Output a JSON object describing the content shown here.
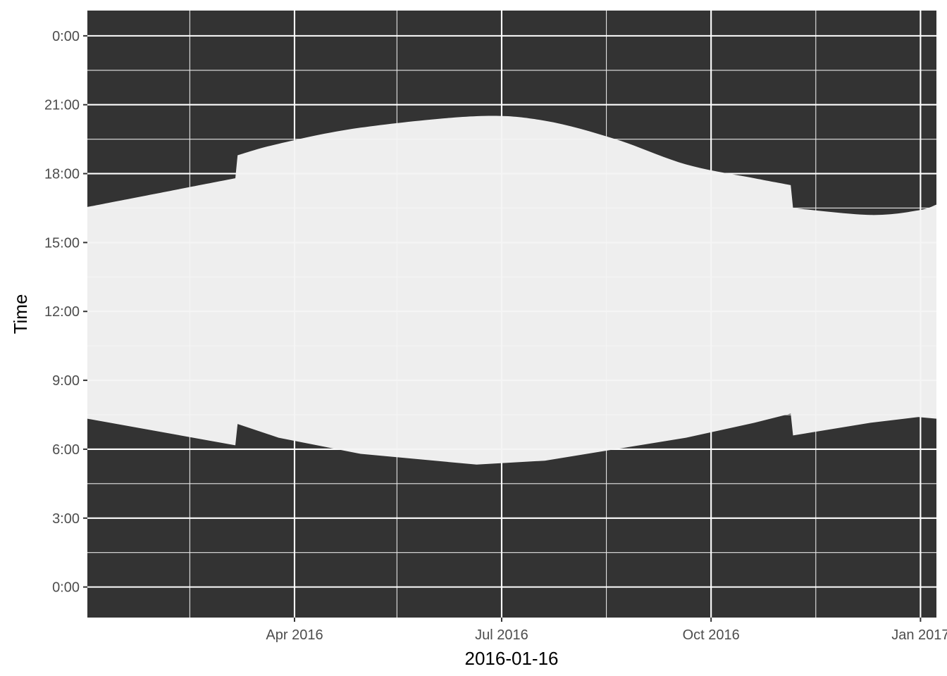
{
  "chart_data": {
    "type": "area",
    "title": "",
    "xlabel": "2016-01-16",
    "ylabel": "Time",
    "xlim": [
      "2016-01-01",
      "2017-01-08"
    ],
    "ylim": [
      -1.33,
      25.1
    ],
    "grid": true,
    "colors": {
      "panel": "#333333",
      "ribbon": "#f5f5f5",
      "grid_major": "#ffffff",
      "grid_minor": "#e6e6e6",
      "tick_text": "#4d4d4d",
      "title_text": "#000000"
    },
    "x_ticks": [
      {
        "date": "2016-04-01",
        "label": "Apr 2016"
      },
      {
        "date": "2016-07-01",
        "label": "Jul 2016"
      },
      {
        "date": "2016-10-01",
        "label": "Oct 2016"
      },
      {
        "date": "2017-01-01",
        "label": "Jan 2017"
      }
    ],
    "x_minor_ticks": [
      "2016-02-15",
      "2016-05-16",
      "2016-08-16",
      "2016-11-16"
    ],
    "y_ticks": [
      {
        "value": 0,
        "label": "0:00"
      },
      {
        "value": 3,
        "label": "3:00"
      },
      {
        "value": 6,
        "label": "6:00"
      },
      {
        "value": 9,
        "label": "9:00"
      },
      {
        "value": 12,
        "label": "12:00"
      },
      {
        "value": 15,
        "label": "15:00"
      },
      {
        "value": 18,
        "label": "18:00"
      },
      {
        "value": 21,
        "label": "21:00"
      },
      {
        "value": 24,
        "label": "0:00"
      }
    ],
    "y_minor_ticks": [
      1.5,
      4.5,
      7.5,
      10.5,
      13.5,
      16.5,
      19.5,
      22.5
    ],
    "series": [
      {
        "x": [
          "2016-01-01",
          "2016-03-06",
          "2016-03-07",
          "2016-03-25",
          "2016-04-30",
          "2016-06-20",
          "2016-07-20",
          "2016-08-20",
          "2016-09-20",
          "2016-10-20",
          "2016-11-05",
          "2016-11-06",
          "2016-12-10",
          "2016-12-31",
          "2017-01-08"
        ],
        "ymin": [
          7.33,
          6.17,
          7.1,
          6.5,
          5.8,
          5.33,
          5.5,
          6.0,
          6.5,
          7.15,
          7.55,
          6.6,
          7.15,
          7.4,
          7.33
        ],
        "ymax": [
          16.55,
          17.8,
          18.8,
          19.3,
          20.0,
          20.5,
          20.3,
          19.5,
          18.4,
          17.8,
          17.5,
          16.5,
          16.2,
          16.4,
          16.65
        ]
      }
    ]
  }
}
